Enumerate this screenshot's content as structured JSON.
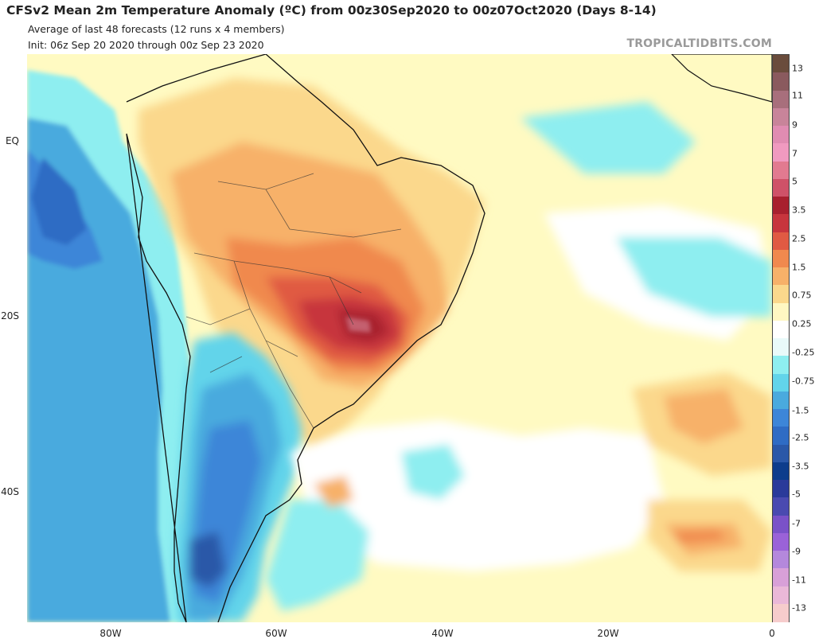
{
  "header": {
    "title": "CFSv2 Mean 2m Temperature Anomaly (ºC) from 00z30Sep2020 to 00z07Oct2020 (Days 8-14)",
    "subtitle1": "Average of last 48 forecasts (12 runs x 4 members)",
    "subtitle2": "Init: 06z Sep 20 2020 through 00z Sep 23 2020"
  },
  "watermark": "TROPICALTIDBITS.COM",
  "lat_labels": [
    "EQ",
    "20S",
    "40S"
  ],
  "lon_labels": [
    "80W",
    "60W",
    "40W",
    "20W",
    "0"
  ],
  "colorbar": {
    "labels": [
      "13",
      "11",
      "9",
      "7",
      "5",
      "3.5",
      "2.5",
      "1.5",
      "0.75",
      "0.25",
      "-0.25",
      "-0.75",
      "-1.5",
      "-2.5",
      "-3.5",
      "-5",
      "-7",
      "-9",
      "-11",
      "-13"
    ],
    "colors": [
      "#6a4c3c",
      "#8a5a5e",
      "#a86f7c",
      "#c8849a",
      "#e08cb2",
      "#f09ac0",
      "#e27a90",
      "#cf5268",
      "#a8202e",
      "#c7353d",
      "#e05a43",
      "#f0894e",
      "#f7b169",
      "#fbd88c",
      "#fff7c2",
      "#ffffff",
      "#e9fafa",
      "#8eeef0",
      "#62d4ea",
      "#4aaade",
      "#3d86d8",
      "#2f6cc4",
      "#2a58a8",
      "#0d3d8c",
      "#2a3a9a",
      "#4a4ab0",
      "#7a52c8",
      "#9a62d8",
      "#b488dc",
      "#d8a0d8",
      "#eab8d8",
      "#f6cccc"
    ]
  },
  "map": {
    "variable": "2m temperature anomaly (degC)",
    "regions": [
      {
        "name": "Central-south Brazil (Sao Paulo / Mato Grosso do Sul)",
        "anomaly": 4.0
      },
      {
        "name": "Central Brazil",
        "anomaly": 2.5
      },
      {
        "name": "Northeast Brazil / Para",
        "anomaly": 1.5
      },
      {
        "name": "Argentina / Patagonia",
        "anomaly": -1.5
      },
      {
        "name": "Southern Patagonia",
        "anomaly": -2.5
      },
      {
        "name": "Eastern Pacific off Ecuador-Peru",
        "anomaly": -1.5
      },
      {
        "name": "South Atlantic near 32S 40W",
        "anomaly": -0.75
      },
      {
        "name": "South Atlantic near 30S 15W",
        "anomaly": 1.5
      },
      {
        "name": "Equatorial Atlantic",
        "anomaly": 0.5
      }
    ]
  }
}
